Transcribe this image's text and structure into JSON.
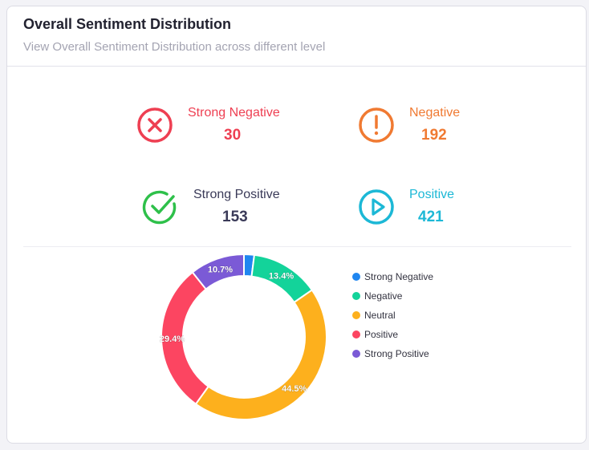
{
  "card": {
    "title": "Overall Sentiment Distribution",
    "subtitle": "View Overall Sentiment Distribution across different level"
  },
  "stats": {
    "strong_negative": {
      "label": "Strong Negative",
      "value": "30",
      "color": "#ee3f52",
      "icon": "x-circle-icon"
    },
    "negative": {
      "label": "Negative",
      "value": "192",
      "color": "#f07a32",
      "icon": "exclamation-circle-icon"
    },
    "strong_positive": {
      "label": "Strong Positive",
      "value": "153",
      "color": "#3a3a58",
      "icon_color": "#2ec04a",
      "icon": "check-circle-icon"
    },
    "positive": {
      "label": "Positive",
      "value": "421",
      "color": "#1cb8d6",
      "icon": "play-circle-icon"
    }
  },
  "chart_data": {
    "type": "pie",
    "variant": "donut",
    "categories": [
      "Strong Negative",
      "Negative",
      "Neutral",
      "Positive",
      "Strong Positive"
    ],
    "values": [
      2.0,
      13.4,
      44.5,
      29.4,
      10.7
    ],
    "labels": [
      "",
      "13.4%",
      "44.5%",
      "29.4%",
      "10.7%"
    ],
    "colors": [
      "#1f86f0",
      "#13d39a",
      "#fdb01d",
      "#fc4561",
      "#7b5ad6"
    ],
    "legend_position": "right"
  }
}
